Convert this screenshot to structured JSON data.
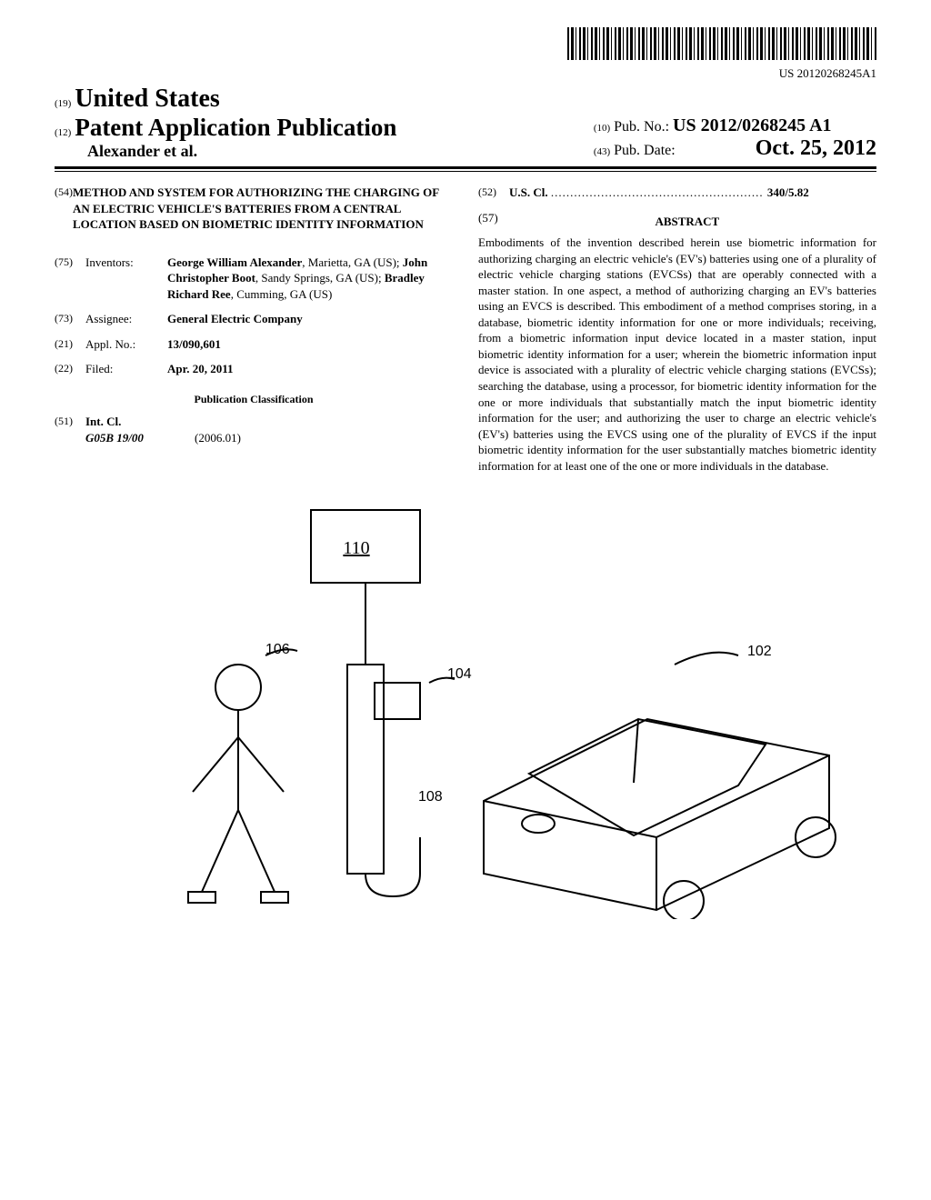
{
  "barcode_number": "US 20120268245A1",
  "header": {
    "prefix19": "(19)",
    "country": "United States",
    "prefix12": "(12)",
    "pubtype": "Patent Application Publication",
    "authors": "Alexander et al.",
    "pubno_prefix": "(10)",
    "pubno_label": "Pub. No.:",
    "pubno_value": "US 2012/0268245 A1",
    "pubdate_prefix": "(43)",
    "pubdate_label": "Pub. Date:",
    "pubdate_value": "Oct. 25, 2012"
  },
  "left": {
    "title_num": "(54)",
    "title": "METHOD AND SYSTEM FOR AUTHORIZING THE CHARGING OF AN ELECTRIC VEHICLE'S BATTERIES FROM A CENTRAL LOCATION BASED ON BIOMETRIC IDENTITY INFORMATION",
    "inventors_num": "(75)",
    "inventors_label": "Inventors:",
    "inventors_html": "George William Alexander|, Marietta, GA (US); |John Christopher Boot|, Sandy Springs, GA (US); |Bradley Richard Ree|, Cumming, GA (US)",
    "assignee_num": "(73)",
    "assignee_label": "Assignee:",
    "assignee_value": "General Electric Company",
    "applno_num": "(21)",
    "applno_label": "Appl. No.:",
    "applno_value": "13/090,601",
    "filed_num": "(22)",
    "filed_label": "Filed:",
    "filed_value": "Apr. 20, 2011",
    "pubclass_heading": "Publication Classification",
    "intcl_num": "(51)",
    "intcl_label": "Int. Cl.",
    "intcl_code": "G05B 19/00",
    "intcl_year": "(2006.01)"
  },
  "right": {
    "uscl_num": "(52)",
    "uscl_label": "U.S. Cl.",
    "uscl_value": "340/5.82",
    "abstract_num": "(57)",
    "abstract_heading": "ABSTRACT",
    "abstract_text": "Embodiments of the invention described herein use biometric information for authorizing charging an electric vehicle's (EV's) batteries using one of a plurality of electric vehicle charging stations (EVCSs) that are operably connected with a master station. In one aspect, a method of authorizing charging an EV's batteries using an EVCS is described. This embodiment of a method comprises storing, in a database, biometric identity information for one or more individuals; receiving, from a biometric information input device located in a master station, input biometric identity information for a user; wherein the biometric information input device is associated with a plurality of electric vehicle charging stations (EVCSs); searching the database, using a processor, for biometric identity information for the one or more individuals that substantially match the input biometric identity information for the user; and authorizing the user to charge an electric vehicle's (EV's) batteries using the EVCS using one of the plurality of EVCS if the input biometric identity information for the user substantially matches biometric identity information for at least one of the one or more individuals in the database."
  },
  "figure": {
    "labels": {
      "110": "110",
      "106": "106",
      "104": "104",
      "108": "108",
      "102": "102"
    }
  }
}
